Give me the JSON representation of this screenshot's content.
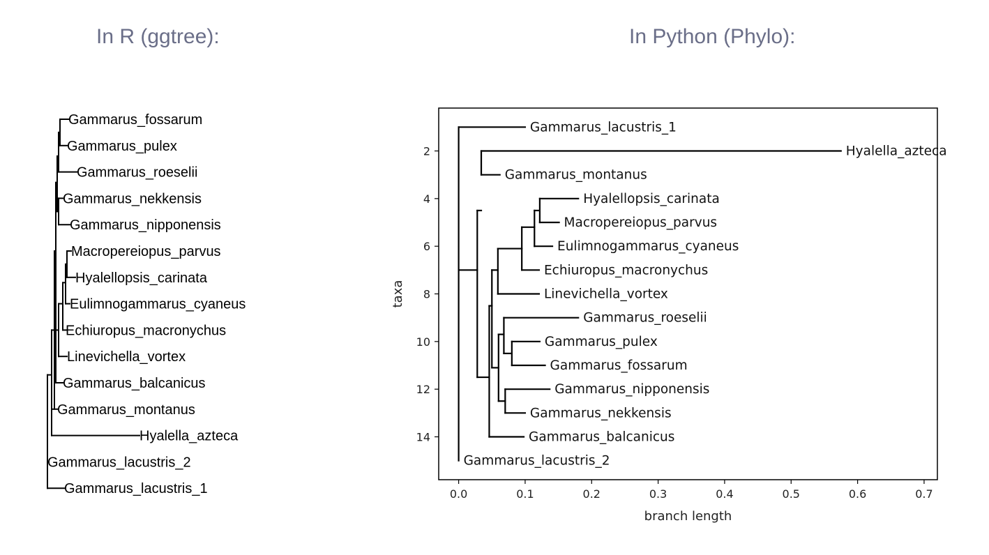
{
  "titles": {
    "left": "In R (ggtree):",
    "right": "In Python (Phylo):"
  },
  "r_tree": {
    "tips": [
      "Gammarus_fossarum",
      "Gammarus_pulex",
      "Gammarus_roeselii",
      "Gammarus_nekkensis",
      "Gammarus_nipponensis",
      "Macropereiopus_parvus",
      "Hyalellopsis_carinata",
      "Eulimnogammarus_cyaneus",
      "Echiuropus_macronychus",
      "Linevichella_vortex",
      "Gammarus_balcanicus",
      "Gammarus_montanus",
      "Hyalella_azteca",
      "Gammarus_lacustris_2",
      "Gammarus_lacustris_1"
    ]
  },
  "python_tree": {
    "xlabel": "branch length",
    "ylabel": "taxa",
    "x_ticks": [
      "0.0",
      "0.1",
      "0.2",
      "0.3",
      "0.4",
      "0.5",
      "0.6",
      "0.7"
    ],
    "y_ticks": [
      "2",
      "4",
      "6",
      "8",
      "10",
      "12",
      "14"
    ],
    "xlim": [
      -0.03,
      0.72
    ],
    "ylim": [
      15.8,
      0.2
    ],
    "tips": [
      {
        "label": "Gammarus_lacustris_1",
        "x": 0.1,
        "y": 1
      },
      {
        "label": "Hyalella_azteca",
        "x": 0.575,
        "y": 2
      },
      {
        "label": "Gammarus_montanus",
        "x": 0.062,
        "y": 3
      },
      {
        "label": "Hyalellopsis_carinata",
        "x": 0.18,
        "y": 4
      },
      {
        "label": "Macropereiopus_parvus",
        "x": 0.151,
        "y": 5
      },
      {
        "label": "Eulimnogammarus_cyaneus",
        "x": 0.141,
        "y": 6
      },
      {
        "label": "Echiuropus_macronychus",
        "x": 0.121,
        "y": 7
      },
      {
        "label": "Linevichella_vortex",
        "x": 0.121,
        "y": 8
      },
      {
        "label": "Gammarus_roeselii",
        "x": 0.18,
        "y": 9
      },
      {
        "label": "Gammarus_pulex",
        "x": 0.122,
        "y": 10
      },
      {
        "label": "Gammarus_fossarum",
        "x": 0.13,
        "y": 11
      },
      {
        "label": "Gammarus_nipponensis",
        "x": 0.137,
        "y": 12
      },
      {
        "label": "Gammarus_nekkensis",
        "x": 0.1,
        "y": 13
      },
      {
        "label": "Gammarus_balcanicus",
        "x": 0.098,
        "y": 14
      },
      {
        "label": "Gammarus_lacustris_2",
        "x": 0.0,
        "y": 15
      }
    ]
  }
}
